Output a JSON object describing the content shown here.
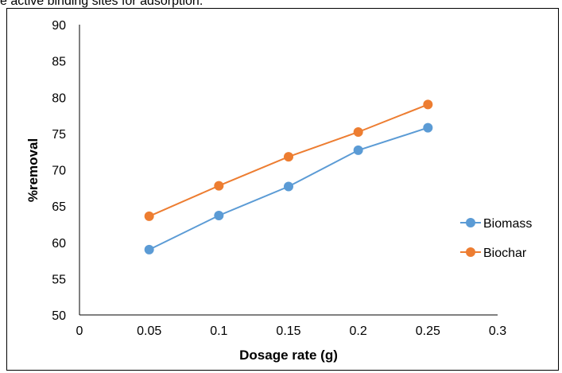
{
  "page": {
    "top_text": "e active binding sites for adsorption."
  },
  "chart_data": {
    "type": "line",
    "xlabel": "Dosage rate (g)",
    "ylabel": "%removal",
    "xlim": [
      0,
      0.3
    ],
    "ylim": [
      50,
      90
    ],
    "x_ticks": [
      "0",
      "0.05",
      "0.1",
      "0.15",
      "0.2",
      "0.25",
      "0.3"
    ],
    "y_ticks": [
      "50",
      "55",
      "60",
      "65",
      "70",
      "75",
      "80",
      "85",
      "90"
    ],
    "grid": false,
    "legend_position": "right",
    "x": [
      0.05,
      0.1,
      0.15,
      0.2,
      0.25
    ],
    "series": [
      {
        "name": "Biomass",
        "color": "#5B9BD5",
        "values": [
          59.0,
          63.7,
          67.7,
          72.7,
          75.8
        ]
      },
      {
        "name": "Biochar",
        "color": "#ED7D31",
        "values": [
          63.6,
          67.8,
          71.8,
          75.2,
          79.0
        ]
      }
    ]
  }
}
